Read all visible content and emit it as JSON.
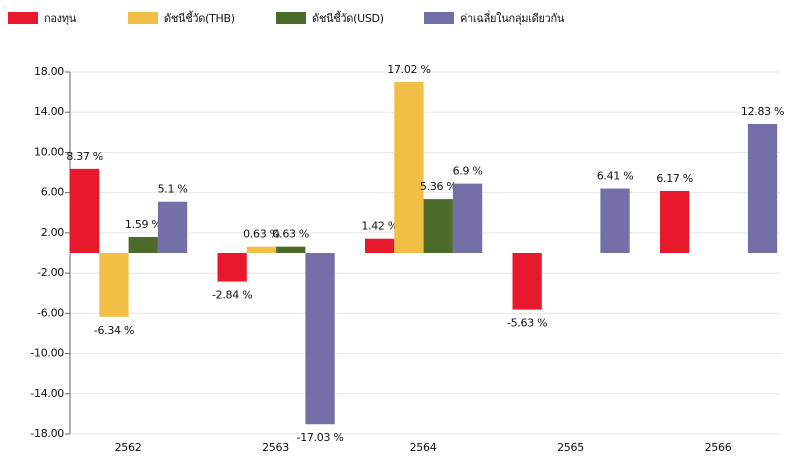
{
  "chart_data": {
    "type": "bar",
    "categories": [
      "2562",
      "2563",
      "2564",
      "2565",
      "2566"
    ],
    "series": [
      {
        "name": "กองทุน",
        "color": "#e8192c",
        "values": [
          8.37,
          -2.84,
          1.42,
          -5.63,
          6.17
        ],
        "value_labels": [
          "8.37 %",
          "-2.84 %",
          "1.42 %",
          "-5.63 %",
          "6.17 %"
        ]
      },
      {
        "name": "ดัชนีชี้วัด(THB)",
        "color": "#f1bf45",
        "values": [
          -6.34,
          0.63,
          17.02,
          null,
          null
        ],
        "value_labels": [
          "-6.34 %",
          "0.63 %",
          "17.02 %",
          null,
          null
        ]
      },
      {
        "name": "ดัชนีชี้วัด(USD)",
        "color": "#4c6b2a",
        "values": [
          1.59,
          0.63,
          5.36,
          null,
          null
        ],
        "value_labels": [
          "1.59 %",
          "0.63 %",
          "5.36 %",
          null,
          null
        ]
      },
      {
        "name": "ค่าเฉลี่ยในกลุ่มเดียวกัน",
        "color": "#7370a8",
        "values": [
          5.1,
          -17.03,
          6.9,
          6.41,
          12.83
        ],
        "value_labels": [
          "5.1 %",
          "-17.03 %",
          "6.9 %",
          "6.41 %",
          "12.83 %"
        ]
      }
    ],
    "ylim": [
      -18,
      18
    ],
    "yticks": [
      {
        "value": 18,
        "label": "18.00"
      },
      {
        "value": 14,
        "label": "14.00"
      },
      {
        "value": 10,
        "label": "10.00"
      },
      {
        "value": 6,
        "label": "6.00"
      },
      {
        "value": 2,
        "label": "2.00"
      },
      {
        "value": -2,
        "label": "-2.00"
      },
      {
        "value": -6,
        "label": "-6.00"
      },
      {
        "value": -10,
        "label": "-10.00"
      },
      {
        "value": -14,
        "label": "-14.00"
      },
      {
        "value": -18,
        "label": "-18.00"
      }
    ],
    "grid": true
  }
}
